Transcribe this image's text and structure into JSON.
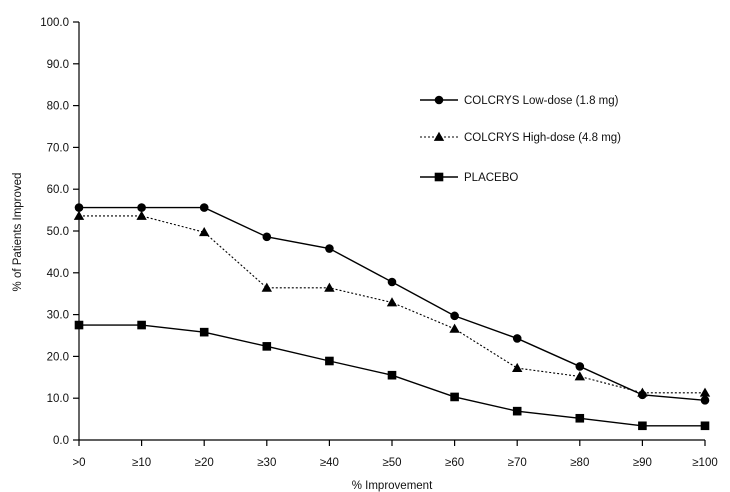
{
  "chart_data": {
    "type": "line",
    "title": "",
    "xlabel": "% Improvement",
    "ylabel": "% of Patients Improved",
    "categories": [
      ">0",
      "≥10",
      "≥20",
      "≥30",
      "≥40",
      "≥50",
      "≥60",
      "≥70",
      "≥80",
      "≥90",
      "≥100"
    ],
    "y_ticks": [
      "0.0",
      "10.0",
      "20.0",
      "30.0",
      "40.0",
      "50.0",
      "60.0",
      "70.0",
      "80.0",
      "90.0",
      "100.0"
    ],
    "ylim": [
      0,
      100
    ],
    "grid": false,
    "legend_position": "top-right",
    "series": [
      {
        "name": "COLCRYS Low-dose (1.8 mg)",
        "marker": "circle",
        "line_style": "solid",
        "color": "#000000",
        "values": [
          55.6,
          55.6,
          55.6,
          48.6,
          45.8,
          37.8,
          29.7,
          24.3,
          17.6,
          10.8,
          9.5
        ]
      },
      {
        "name": "COLCRYS High-dose (4.8 mg)",
        "marker": "triangle",
        "line_style": "dotted",
        "color": "#000000",
        "values": [
          53.6,
          53.6,
          49.7,
          36.4,
          36.4,
          32.9,
          26.6,
          17.2,
          15.2,
          11.3,
          11.3
        ]
      },
      {
        "name": "PLACEBO",
        "marker": "square",
        "line_style": "solid",
        "color": "#000000",
        "values": [
          27.5,
          27.5,
          25.8,
          22.4,
          18.9,
          15.5,
          10.3,
          6.9,
          5.2,
          3.4,
          3.4
        ]
      }
    ]
  }
}
